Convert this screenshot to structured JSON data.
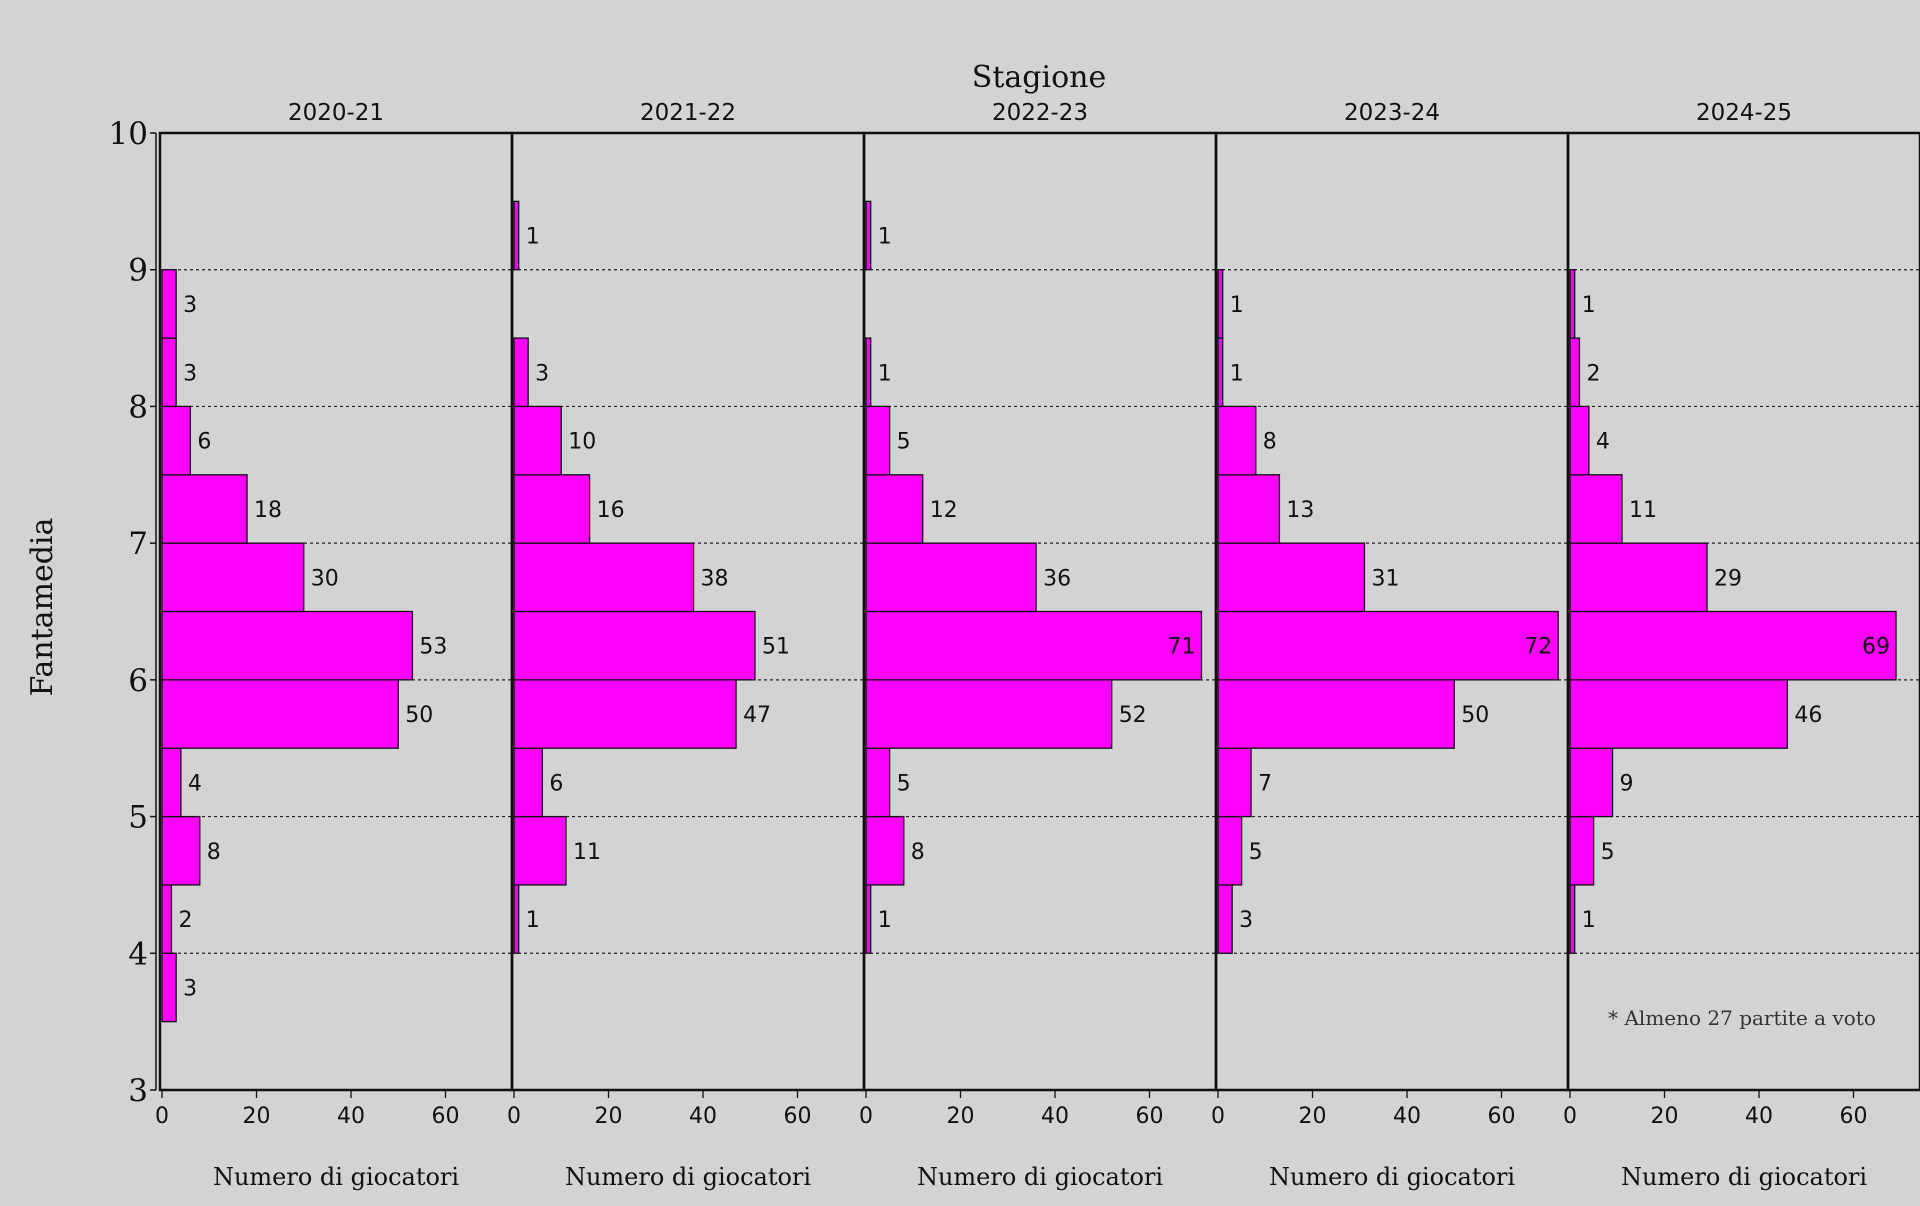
{
  "chart_data": {
    "type": "bar",
    "orientation": "horizontal",
    "title": "Stagione",
    "ylabel": "Fantamedia",
    "xlabel": "Numero di giocatori",
    "ylim": [
      3,
      10
    ],
    "xlim": [
      0,
      72
    ],
    "y_ticks": [
      "3",
      "4",
      "5",
      "6",
      "7",
      "8",
      "9",
      "10"
    ],
    "x_ticks": [
      "0",
      "20",
      "40",
      "60"
    ],
    "bin_width": 0.5,
    "grid_lines_y": [
      4,
      5,
      6,
      7,
      8,
      9
    ],
    "bar_color": "#ff00ff",
    "footnote": "* Almeno 27 partite a voto",
    "panels": [
      {
        "name": "2020-21",
        "bins": [
          {
            "y0": 3.5,
            "value": 3
          },
          {
            "y0": 4.0,
            "value": 2
          },
          {
            "y0": 4.5,
            "value": 8
          },
          {
            "y0": 5.0,
            "value": 4
          },
          {
            "y0": 5.5,
            "value": 50
          },
          {
            "y0": 6.0,
            "value": 53
          },
          {
            "y0": 6.5,
            "value": 30
          },
          {
            "y0": 7.0,
            "value": 18
          },
          {
            "y0": 7.5,
            "value": 6
          },
          {
            "y0": 8.0,
            "value": 3
          },
          {
            "y0": 8.5,
            "value": 3
          }
        ]
      },
      {
        "name": "2021-22",
        "bins": [
          {
            "y0": 4.0,
            "value": 1
          },
          {
            "y0": 4.5,
            "value": 11
          },
          {
            "y0": 5.0,
            "value": 6
          },
          {
            "y0": 5.5,
            "value": 47
          },
          {
            "y0": 6.0,
            "value": 51
          },
          {
            "y0": 6.5,
            "value": 38
          },
          {
            "y0": 7.0,
            "value": 16
          },
          {
            "y0": 7.5,
            "value": 10
          },
          {
            "y0": 8.0,
            "value": 3
          },
          {
            "y0": 9.0,
            "value": 1
          }
        ]
      },
      {
        "name": "2022-23",
        "bins": [
          {
            "y0": 4.0,
            "value": 1
          },
          {
            "y0": 4.5,
            "value": 8
          },
          {
            "y0": 5.0,
            "value": 5
          },
          {
            "y0": 5.5,
            "value": 52
          },
          {
            "y0": 6.0,
            "value": 71
          },
          {
            "y0": 6.5,
            "value": 36
          },
          {
            "y0": 7.0,
            "value": 12
          },
          {
            "y0": 7.5,
            "value": 5
          },
          {
            "y0": 8.0,
            "value": 1
          },
          {
            "y0": 9.0,
            "value": 1
          }
        ]
      },
      {
        "name": "2023-24",
        "bins": [
          {
            "y0": 4.0,
            "value": 3
          },
          {
            "y0": 4.5,
            "value": 5
          },
          {
            "y0": 5.0,
            "value": 7
          },
          {
            "y0": 5.5,
            "value": 50
          },
          {
            "y0": 6.0,
            "value": 72
          },
          {
            "y0": 6.5,
            "value": 31
          },
          {
            "y0": 7.0,
            "value": 13
          },
          {
            "y0": 7.5,
            "value": 8
          },
          {
            "y0": 8.0,
            "value": 1
          },
          {
            "y0": 8.5,
            "value": 1
          }
        ]
      },
      {
        "name": "2024-25",
        "bins": [
          {
            "y0": 4.0,
            "value": 1
          },
          {
            "y0": 4.5,
            "value": 5
          },
          {
            "y0": 5.0,
            "value": 9
          },
          {
            "y0": 5.5,
            "value": 46
          },
          {
            "y0": 6.0,
            "value": 69
          },
          {
            "y0": 6.5,
            "value": 29
          },
          {
            "y0": 7.0,
            "value": 11
          },
          {
            "y0": 7.5,
            "value": 4
          },
          {
            "y0": 8.0,
            "value": 2
          },
          {
            "y0": 8.5,
            "value": 1
          }
        ]
      }
    ]
  }
}
